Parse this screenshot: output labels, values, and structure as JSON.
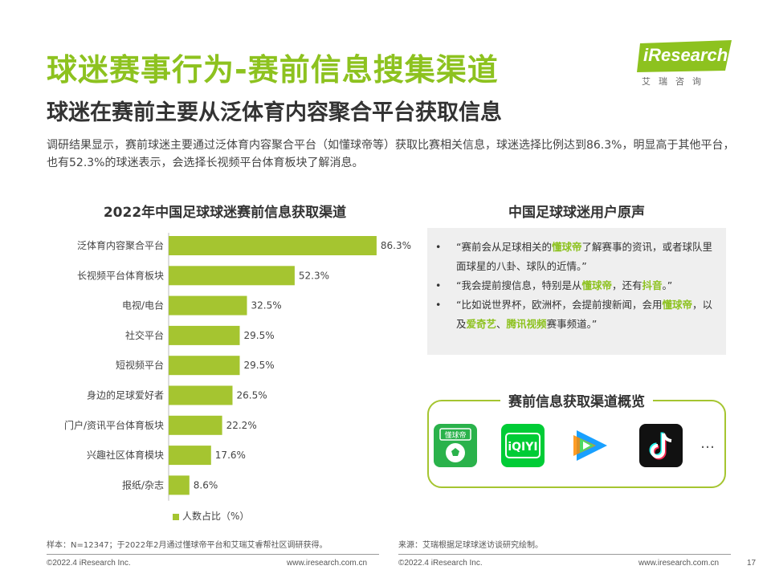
{
  "header": {
    "title": "球迷赛事行为-赛前信息搜集渠道",
    "subtitle": "球迷在赛前主要从泛体育内容聚合平台获取信息",
    "intro": "调研结果显示，赛前球迷主要通过泛体育内容聚合平台（如懂球帝等）获取比赛相关信息，球迷选择比例达到86.3%，明显高于其他平台，也有52.3%的球迷表示，会选择长视频平台体育板块了解消息。"
  },
  "logo": {
    "text": "iResearch",
    "cn": "艾瑞咨询"
  },
  "chart_data": {
    "type": "bar",
    "orientation": "horizontal",
    "title": "2022年中国足球球迷赛前信息获取渠道",
    "categories": [
      "泛体育内容聚合平台",
      "长视频平台体育板块",
      "电视/电台",
      "社交平台",
      "短视频平台",
      "身边的足球爱好者",
      "门户/资讯平台体育板块",
      "兴趣社区体育模块",
      "报纸/杂志"
    ],
    "series": [
      {
        "name": "人数占比（%）",
        "values": [
          86.3,
          52.3,
          32.5,
          29.5,
          29.5,
          26.5,
          22.2,
          17.6,
          8.6
        ]
      }
    ],
    "value_labels": [
      "86.3%",
      "52.3%",
      "32.5%",
      "29.5%",
      "29.5%",
      "26.5%",
      "22.2%",
      "17.6%",
      "8.6%"
    ],
    "xlim": [
      0,
      100
    ],
    "color": "#a5c530",
    "grid": false,
    "legend": "bottom"
  },
  "quotes": {
    "title": "中国足球球迷用户原声",
    "bullet": "•",
    "items": [
      {
        "parts": [
          {
            "text": "“赛前会从足球相关的",
            "hl": false
          },
          {
            "text": "懂球帝",
            "hl": true
          },
          {
            "text": "了解赛事的资讯，或者球队里面球星的八卦、球队的近情。”",
            "hl": false
          }
        ]
      },
      {
        "parts": [
          {
            "text": "“我会提前搜信息，特别是从",
            "hl": false
          },
          {
            "text": "懂球帝",
            "hl": true
          },
          {
            "text": "，还有",
            "hl": false
          },
          {
            "text": "抖音",
            "hl": true
          },
          {
            "text": "。”",
            "hl": false
          }
        ]
      },
      {
        "parts": [
          {
            "text": "“比如说世界杯，欧洲杯，会提前搜新闻，会用",
            "hl": false
          },
          {
            "text": "懂球帝",
            "hl": true
          },
          {
            "text": "，以及",
            "hl": false
          },
          {
            "text": "爱奇艺",
            "hl": true
          },
          {
            "text": "、",
            "hl": false
          },
          {
            "text": "腾讯视频",
            "hl": true
          },
          {
            "text": "赛事频道。”",
            "hl": false
          }
        ]
      }
    ]
  },
  "channels": {
    "title": "赛前信息获取渠道概览",
    "apps": [
      {
        "name": "dongqiudi-app-icon",
        "label": "懂球帝"
      },
      {
        "name": "iqiyi-app-icon",
        "label": "iQIYI"
      },
      {
        "name": "tencent-video-app-icon",
        "label": ""
      },
      {
        "name": "douyin-app-icon",
        "label": ""
      }
    ],
    "more": "…"
  },
  "footnotes": {
    "sample": "样本：N=12347；于2022年2月通过懂球帝平台和艾瑞艾睿帮社区调研获得。",
    "source": "来源：艾瑞根据足球球迷访谈研究绘制。"
  },
  "footer": {
    "copyright": "©2022.4 iResearch Inc.",
    "website": "www.iresearch.com.cn",
    "page_number": "17"
  },
  "colors": {
    "accent": "#8dc21f",
    "bar": "#a5c530"
  }
}
